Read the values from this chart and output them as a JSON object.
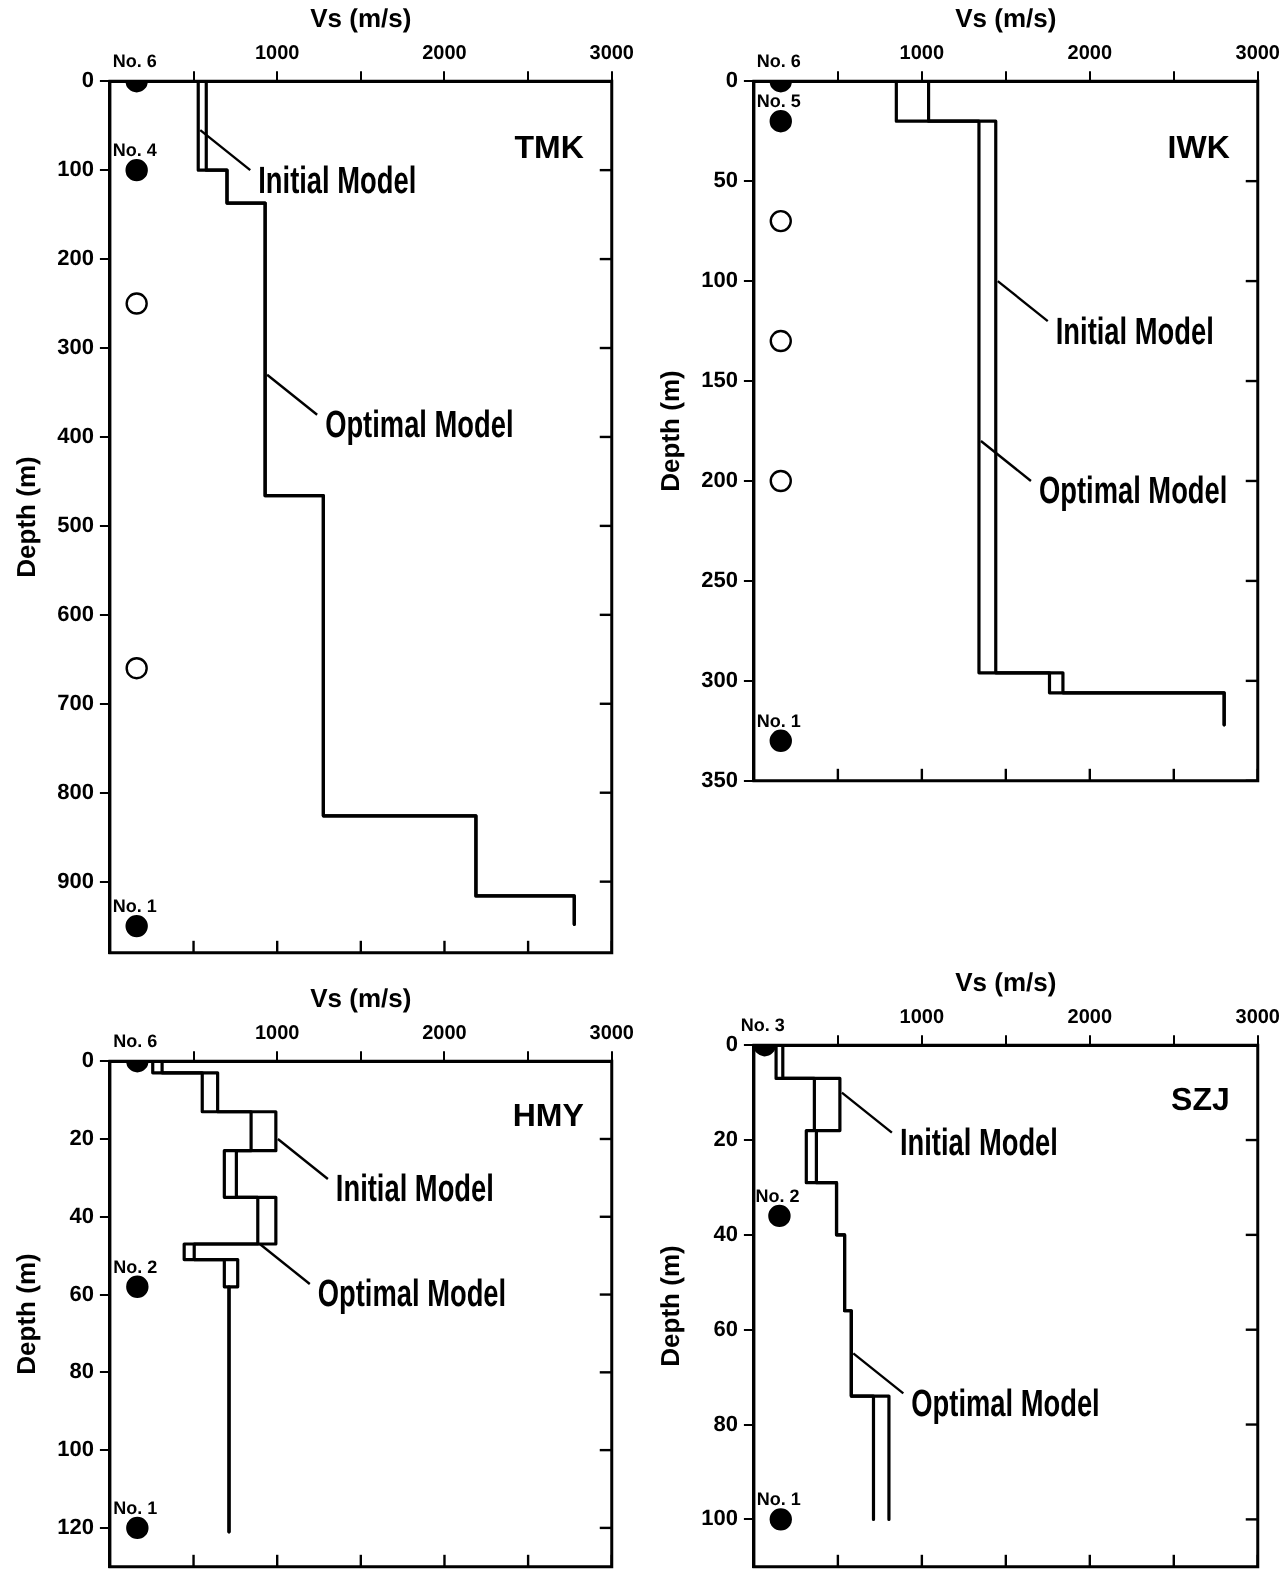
{
  "chart_data": [
    {
      "type": "line",
      "title": "TMK",
      "xlabel": "Vs (m/s)",
      "ylabel": "Depth (m)",
      "xlim": [
        0,
        3000
      ],
      "ylim": [
        980,
        0
      ],
      "xticks": [
        {
          "value": 500,
          "label": null
        },
        1000,
        {
          "value": 1500,
          "label": null
        },
        2000,
        {
          "value": 2500,
          "label": null
        },
        3000
      ],
      "yticks": [
        0,
        100,
        200,
        300,
        400,
        500,
        600,
        700,
        800,
        900
      ],
      "grid": false,
      "legend": false,
      "series": [
        {
          "type": "line",
          "color": "#000000",
          "x": [
            0,
            528,
            528,
            700,
            700,
            928,
            928,
            1276,
            1276,
            2188,
            2188,
            2776,
            2776
          ],
          "values": [
            0,
            0,
            100,
            100,
            137,
            137,
            466,
            466,
            826,
            826,
            916,
            916,
            948
          ]
        },
        {
          "type": "line",
          "color": "#000000",
          "x": [
            0,
            576,
            576,
            700,
            700,
            928,
            928,
            1276,
            1276,
            2188,
            2188,
            2776,
            2776
          ],
          "values": [
            0,
            0,
            100,
            100,
            137,
            137,
            466,
            466,
            826,
            826,
            916,
            916,
            948
          ]
        },
        {
          "type": "scatter",
          "color": "#000000",
          "marker": "circle",
          "x": [
            160,
            160,
            160
          ],
          "values": [
            0,
            100,
            950
          ]
        },
        {
          "type": "scatter",
          "color": "#ffffff",
          "marker": "circle",
          "x": [
            160,
            160
          ],
          "values": [
            250,
            660
          ]
        }
      ],
      "annotations": [
        {
          "text": "No. 6",
          "x": 160,
          "y": 0
        },
        {
          "text": "No. 4",
          "x": 160,
          "y": 100
        },
        {
          "text": "No. 1",
          "x": 160,
          "y": 950
        },
        {
          "text": "Initial Model",
          "x": 528,
          "y": 55
        },
        {
          "text": "Optimal Model",
          "x": 928,
          "y": 330
        }
      ]
    },
    {
      "type": "line",
      "title": "IWK",
      "xlabel": "Vs (m/s)",
      "ylabel": "Depth (m)",
      "xlim": [
        0,
        3000
      ],
      "ylim": [
        350,
        0
      ],
      "xticks": [
        {
          "value": 500,
          "label": null
        },
        1000,
        {
          "value": 1500,
          "label": null
        },
        2000,
        {
          "value": 2500,
          "label": null
        },
        3000
      ],
      "yticks": [
        0,
        50,
        100,
        150,
        200,
        250,
        300,
        350
      ],
      "grid": false,
      "legend": false,
      "series": [
        {
          "type": "line",
          "color": "#000000",
          "x": [
            0,
            1040,
            1040,
            1440,
            1440,
            1840,
            1840,
            2800,
            2800
          ],
          "values": [
            0,
            0,
            20,
            20,
            296,
            296,
            306,
            306,
            322
          ]
        },
        {
          "type": "line",
          "color": "#000000",
          "x": [
            0,
            848,
            848,
            1340,
            1340,
            1760,
            1760,
            2800,
            2800
          ],
          "values": [
            0,
            0,
            20,
            20,
            296,
            296,
            306,
            306,
            322
          ]
        },
        {
          "type": "scatter",
          "color": "#000000",
          "marker": "circle",
          "x": [
            160,
            160,
            160
          ],
          "values": [
            0,
            20,
            330
          ]
        },
        {
          "type": "scatter",
          "color": "#ffffff",
          "marker": "circle",
          "x": [
            160,
            160,
            160
          ],
          "values": [
            70,
            130,
            200
          ]
        }
      ],
      "annotations": [
        {
          "text": "No. 6",
          "x": 160,
          "y": 0
        },
        {
          "text": "No. 5",
          "x": 160,
          "y": 20
        },
        {
          "text": "No. 1",
          "x": 160,
          "y": 330
        },
        {
          "text": "Initial Model",
          "x": 1440,
          "y": 100
        },
        {
          "text": "Optimal Model",
          "x": 1340,
          "y": 180
        }
      ]
    },
    {
      "type": "line",
      "title": "HMY",
      "xlabel": "Vs (m/s)",
      "ylabel": "Depth (m)",
      "xlim": [
        0,
        3000
      ],
      "ylim": [
        130,
        0
      ],
      "xticks": [
        {
          "value": 500,
          "label": null
        },
        1000,
        {
          "value": 1500,
          "label": null
        },
        2000,
        {
          "value": 2500,
          "label": null
        },
        3000
      ],
      "yticks": [
        0,
        20,
        40,
        60,
        80,
        100,
        120
      ],
      "grid": false,
      "legend": false,
      "series": [
        {
          "type": "line",
          "color": "#000000",
          "x": [
            0,
            312,
            312,
            644,
            644,
            992,
            992,
            756,
            756,
            992,
            992,
            504,
            504,
            764,
            764,
            712,
            712
          ],
          "values": [
            0,
            0,
            3,
            3,
            13,
            13,
            23,
            23,
            35,
            35,
            47,
            47,
            51,
            51,
            58,
            58,
            121
          ]
        },
        {
          "type": "line",
          "color": "#000000",
          "x": [
            0,
            256,
            256,
            552,
            552,
            844,
            844,
            684,
            684,
            884,
            884,
            444,
            444,
            684,
            684,
            712,
            712
          ],
          "values": [
            0,
            0,
            3,
            3,
            13,
            13,
            23,
            23,
            35,
            35,
            47,
            47,
            51,
            51,
            58,
            58,
            121
          ]
        },
        {
          "type": "scatter",
          "color": "#000000",
          "marker": "circle",
          "x": [
            164,
            164,
            164
          ],
          "values": [
            0,
            58,
            120
          ]
        }
      ],
      "annotations": [
        {
          "text": "No. 6",
          "x": 164,
          "y": 0
        },
        {
          "text": "No. 2",
          "x": 164,
          "y": 58
        },
        {
          "text": "No. 1",
          "x": 164,
          "y": 120
        },
        {
          "text": "Initial Model",
          "x": 992,
          "y": 20
        },
        {
          "text": "Optimal Model",
          "x": 884,
          "y": 47
        }
      ]
    },
    {
      "type": "line",
      "title": "SZJ",
      "xlabel": "Vs (m/s)",
      "ylabel": "Depth (m)",
      "xlim": [
        0,
        3000
      ],
      "ylim": [
        110,
        0
      ],
      "xticks": [
        {
          "value": 500,
          "label": null
        },
        1000,
        {
          "value": 1500,
          "label": null
        },
        2000,
        {
          "value": 2500,
          "label": null
        },
        3000
      ],
      "yticks": [
        0,
        20,
        40,
        60,
        80,
        100
      ],
      "grid": false,
      "legend": false,
      "series": [
        {
          "type": "line",
          "color": "#000000",
          "x": [
            0,
            172,
            172,
            512,
            512,
            372,
            372,
            492,
            492,
            540,
            540,
            580,
            580,
            804,
            804
          ],
          "values": [
            0,
            0,
            7,
            7,
            18,
            18,
            29,
            29,
            40,
            40,
            56,
            56,
            74,
            74,
            100
          ]
        },
        {
          "type": "line",
          "color": "#000000",
          "x": [
            0,
            132,
            132,
            360,
            360,
            312,
            312,
            492,
            492,
            540,
            540,
            580,
            580,
            712,
            712
          ],
          "values": [
            0,
            0,
            7,
            7,
            18,
            18,
            29,
            29,
            40,
            40,
            56,
            56,
            74,
            74,
            100
          ]
        },
        {
          "type": "scatter",
          "color": "#000000",
          "marker": "circle",
          "x": [
            64,
            152,
            160
          ],
          "values": [
            0,
            36,
            100
          ]
        }
      ],
      "annotations": [
        {
          "text": "No. 3",
          "x": 64,
          "y": 0
        },
        {
          "text": "No. 2",
          "x": 152,
          "y": 36
        },
        {
          "text": "No. 1",
          "x": 160,
          "y": 100
        },
        {
          "text": "Initial Model",
          "x": 512,
          "y": 10
        },
        {
          "text": "Optimal Model",
          "x": 580,
          "y": 65
        }
      ]
    }
  ]
}
